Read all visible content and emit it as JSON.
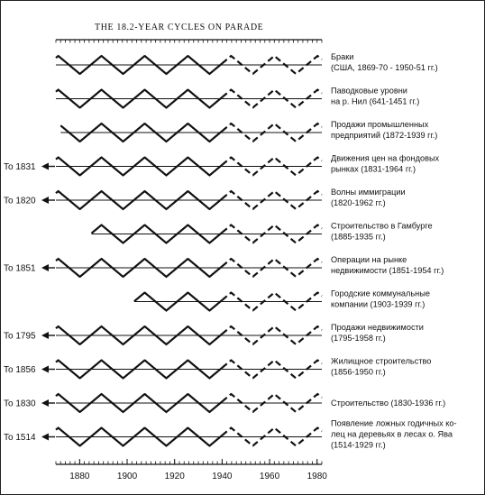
{
  "chart_data": {
    "type": "line",
    "title": "THE 18.2-YEAR CYCLES ON PARADE",
    "xlim": [
      1870,
      1982
    ],
    "x_ticks": [
      1880,
      1900,
      1920,
      1940,
      1960,
      1980
    ],
    "solid_end_year": 1940,
    "series": [
      {
        "label_lines": [
          "Браки",
          "(США, 1869-70 - 1950-51 гг.)"
        ],
        "to": "",
        "start": 1870
      },
      {
        "label_lines": [
          "Паводковые уровни",
          "на р. Нил (641-1451 гг.)"
        ],
        "to": "",
        "start": 1870
      },
      {
        "label_lines": [
          "Продажи промышленных",
          "предприятий (1872-1939 гг.)"
        ],
        "to": "",
        "start": 1872
      },
      {
        "label_lines": [
          "Движения цен на фондовых",
          "рынках (1831-1964 гг.)"
        ],
        "to": "To 1831",
        "start": 1870
      },
      {
        "label_lines": [
          "Волны иммиграции",
          "(1820-1962 гг.)"
        ],
        "to": "To 1820",
        "start": 1870
      },
      {
        "label_lines": [
          "Строительство в Гамбурге",
          "(1885-1935 гг.)"
        ],
        "to": "",
        "start": 1885
      },
      {
        "label_lines": [
          "Операции на рынке",
          "недвижимости (1851-1954 гг.)"
        ],
        "to": "To 1851",
        "start": 1870
      },
      {
        "label_lines": [
          "Городские коммунальные",
          "компании (1903-1939 гг.)"
        ],
        "to": "",
        "start": 1903
      },
      {
        "label_lines": [
          "Продажи недвижимости",
          "(1795-1958 гг.)"
        ],
        "to": "To 1795",
        "start": 1870
      },
      {
        "label_lines": [
          "Жилищное строительство",
          "(1856-1950 гг.)"
        ],
        "to": "To 1856",
        "start": 1870
      },
      {
        "label_lines": [
          "Строительство (1830-1936 гг.)"
        ],
        "to": "To 1830",
        "start": 1870
      },
      {
        "label_lines": [
          "Появление ложных годичных ко-",
          "лец на деревьях в лесах о. Ява",
          "(1514-1929 гг.)"
        ],
        "to": "To 1514",
        "start": 1870
      }
    ]
  }
}
